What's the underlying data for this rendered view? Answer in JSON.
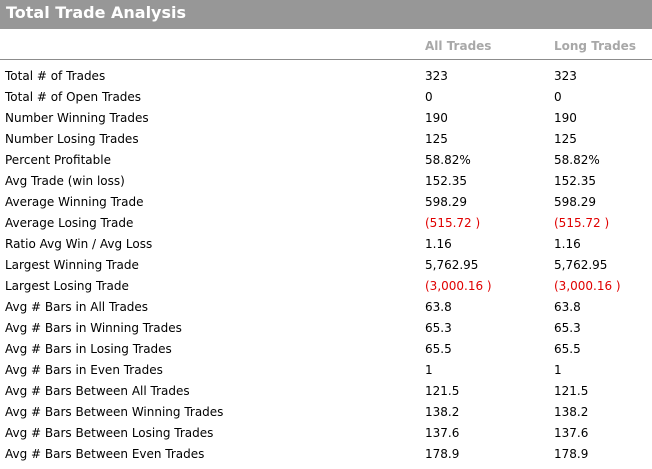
{
  "title": "Total Trade Analysis",
  "columns": {
    "all": "All Trades",
    "long": "Long Trades"
  },
  "colors": {
    "title_bg": "#979797",
    "negative": "#e00000",
    "header_text": "#a8a8a8"
  },
  "rows": [
    {
      "label": "Total # of Trades",
      "all": "323",
      "long": "323",
      "negative": false
    },
    {
      "label": "Total # of Open Trades",
      "all": "0",
      "long": "0",
      "negative": false
    },
    {
      "label": "Number Winning Trades",
      "all": "190",
      "long": "190",
      "negative": false
    },
    {
      "label": "Number Losing Trades",
      "all": "125",
      "long": "125",
      "negative": false
    },
    {
      "label": "Percent Profitable",
      "all": "58.82%",
      "long": "58.82%",
      "negative": false
    },
    {
      "label": "Avg Trade (win  loss)",
      "all": "152.35",
      "long": "152.35",
      "negative": false
    },
    {
      "label": "Average Winning Trade",
      "all": "598.29",
      "long": "598.29",
      "negative": false
    },
    {
      "label": "Average Losing Trade",
      "all": "(515.72 )",
      "long": "(515.72 )",
      "negative": true
    },
    {
      "label": "Ratio Avg Win / Avg Loss",
      "all": "1.16",
      "long": "1.16",
      "negative": false
    },
    {
      "label": "Largest Winning Trade",
      "all": "5,762.95",
      "long": "5,762.95",
      "negative": false
    },
    {
      "label": "Largest Losing Trade",
      "all": "(3,000.16 )",
      "long": "(3,000.16 )",
      "negative": true
    },
    {
      "label": "Avg # Bars in All Trades",
      "all": "63.8",
      "long": "63.8",
      "negative": false
    },
    {
      "label": "Avg # Bars in Winning Trades",
      "all": "65.3",
      "long": "65.3",
      "negative": false
    },
    {
      "label": "Avg # Bars in Losing Trades",
      "all": "65.5",
      "long": "65.5",
      "negative": false
    },
    {
      "label": "Avg # Bars in Even Trades",
      "all": "1",
      "long": "1",
      "negative": false
    },
    {
      "label": "Avg # Bars Between All Trades",
      "all": "121.5",
      "long": "121.5",
      "negative": false
    },
    {
      "label": "Avg # Bars Between Winning Trades",
      "all": "138.2",
      "long": "138.2",
      "negative": false
    },
    {
      "label": "Avg # Bars Between Losing Trades",
      "all": "137.6",
      "long": "137.6",
      "negative": false
    },
    {
      "label": "Avg # Bars Between Even Trades",
      "all": "178.9",
      "long": "178.9",
      "negative": false
    }
  ]
}
